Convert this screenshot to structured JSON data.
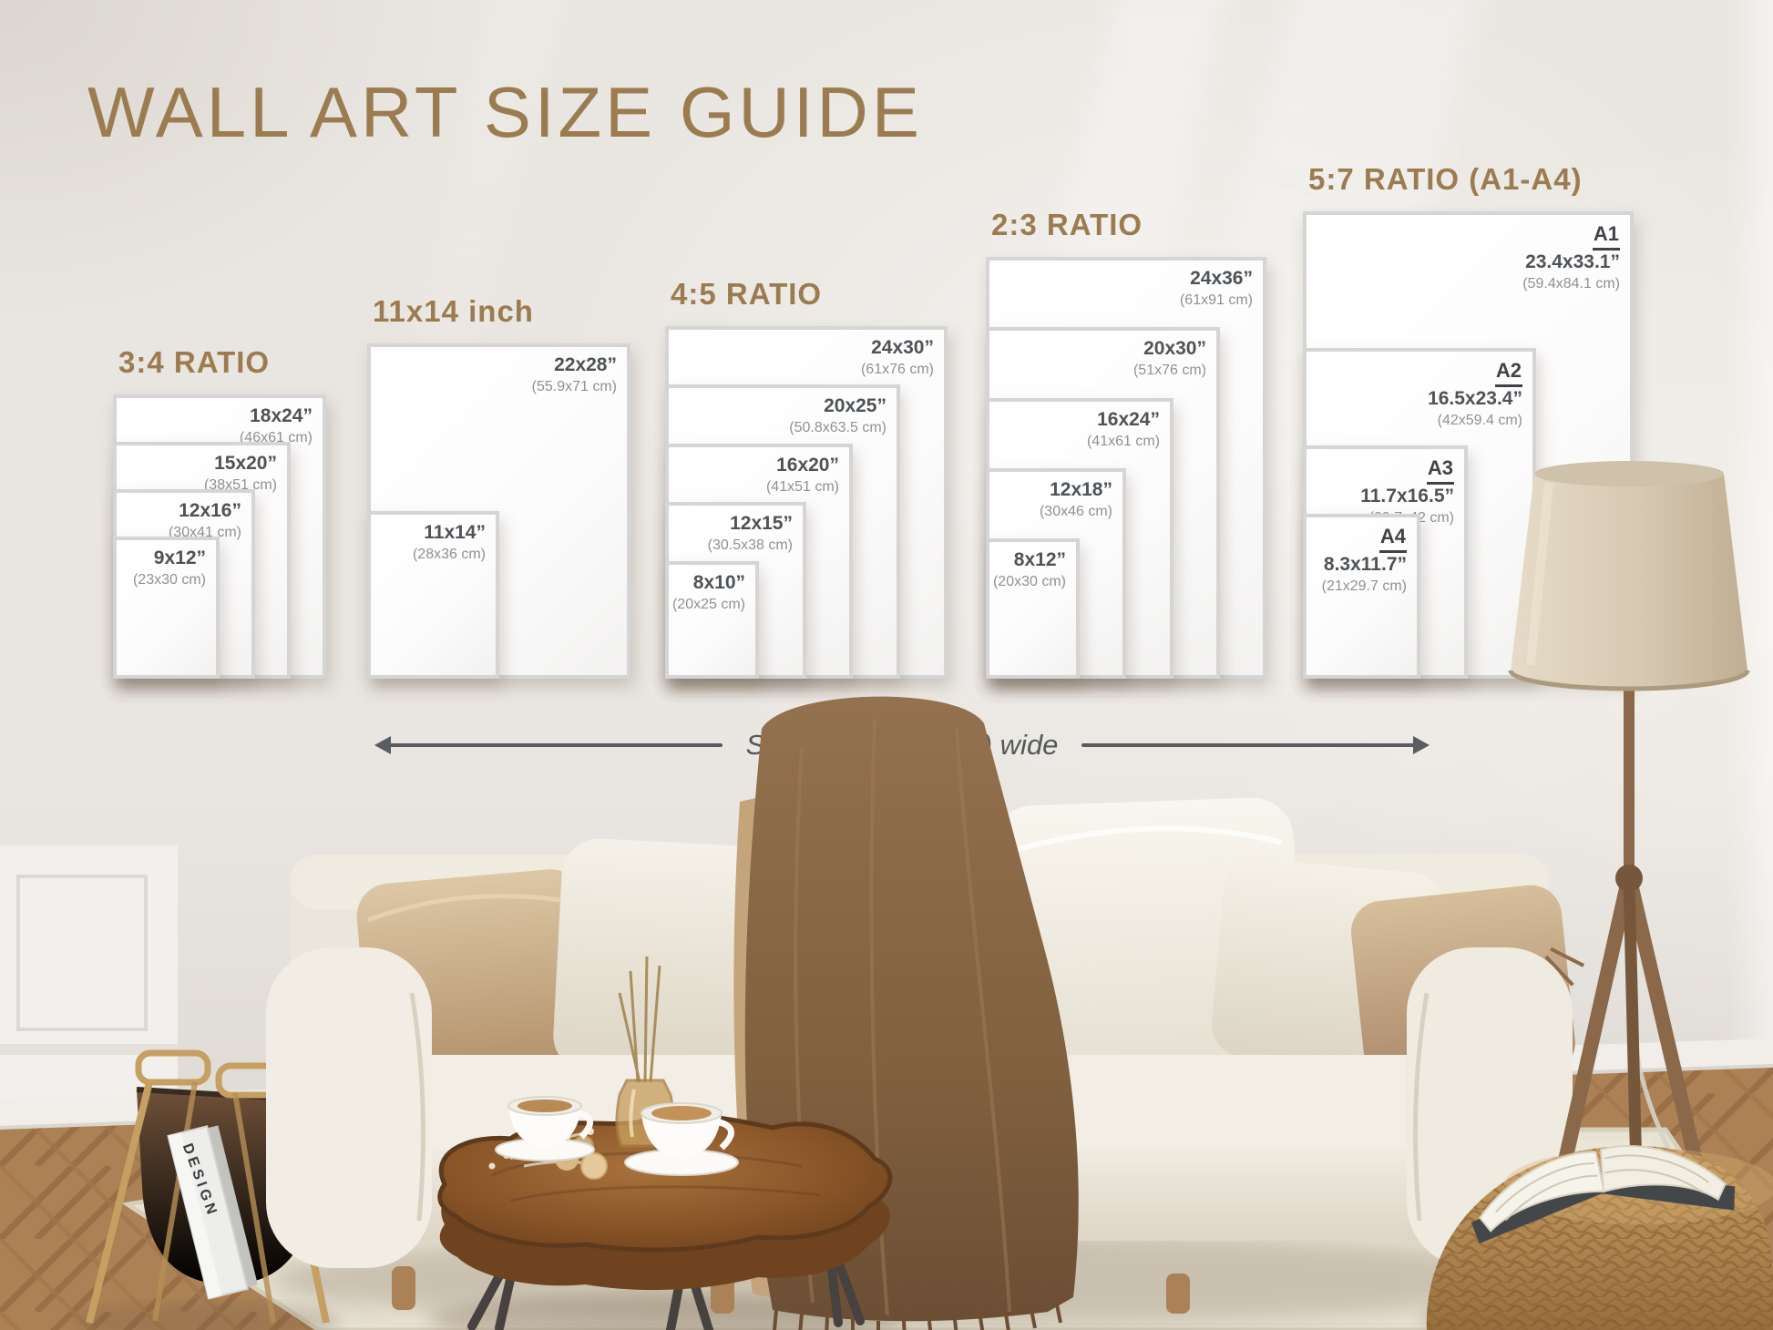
{
  "title": "WALL ART SIZE GUIDE",
  "sofa_note": "Sofa is 90” (228cm) wide",
  "magazine_label": "DESIGN",
  "colors": {
    "accent": "#9b7c50",
    "frame_border": "#d5d5d5",
    "label_dark": "#4e5357",
    "label_light": "#8d9195"
  },
  "groups": [
    {
      "id": "ratio-3-4",
      "header": "3:4 RATIO",
      "frames": [
        {
          "inches": "18x24”",
          "cm": "(46x61 cm)",
          "w_in": 18,
          "h_in": 24
        },
        {
          "inches": "15x20”",
          "cm": "(38x51 cm)",
          "w_in": 15,
          "h_in": 20
        },
        {
          "inches": "12x16”",
          "cm": "(30x41 cm)",
          "w_in": 12,
          "h_in": 16
        },
        {
          "inches": "9x12”",
          "cm": "(23x30 cm)",
          "w_in": 9,
          "h_in": 12
        }
      ]
    },
    {
      "id": "inch-11x14",
      "header": "11x14 inch",
      "frames": [
        {
          "inches": "22x28”",
          "cm": "(55.9x71 cm)",
          "w_in": 22,
          "h_in": 28
        },
        {
          "inches": "11x14”",
          "cm": "(28x36 cm)",
          "w_in": 11,
          "h_in": 14
        }
      ]
    },
    {
      "id": "ratio-4-5",
      "header": "4:5 RATIO",
      "frames": [
        {
          "inches": "24x30”",
          "cm": "(61x76 cm)",
          "w_in": 24,
          "h_in": 30
        },
        {
          "inches": "20x25”",
          "cm": "(50.8x63.5 cm)",
          "w_in": 20,
          "h_in": 25
        },
        {
          "inches": "16x20”",
          "cm": "(41x51 cm)",
          "w_in": 16,
          "h_in": 20
        },
        {
          "inches": "12x15”",
          "cm": "(30.5x38 cm)",
          "w_in": 12,
          "h_in": 15
        },
        {
          "inches": "8x10”",
          "cm": "(20x25 cm)",
          "w_in": 8,
          "h_in": 10
        }
      ]
    },
    {
      "id": "ratio-2-3",
      "header": "2:3 RATIO",
      "frames": [
        {
          "inches": "24x36”",
          "cm": "(61x91 cm)",
          "w_in": 24,
          "h_in": 36
        },
        {
          "inches": "20x30”",
          "cm": "(51x76 cm)",
          "w_in": 20,
          "h_in": 30
        },
        {
          "inches": "16x24”",
          "cm": "(41x61 cm)",
          "w_in": 16,
          "h_in": 24
        },
        {
          "inches": "12x18”",
          "cm": "(30x46 cm)",
          "w_in": 12,
          "h_in": 18
        },
        {
          "inches": "8x12”",
          "cm": "(20x30 cm)",
          "w_in": 8,
          "h_in": 12
        }
      ]
    },
    {
      "id": "ratio-5-7",
      "header": "5:7 RATIO (A1-A4)",
      "frames": [
        {
          "code": "A1",
          "inches": "23.4x33.1”",
          "cm": "(59.4x84.1 cm)",
          "w_in": 23.4,
          "h_in": 33.1
        },
        {
          "code": "A2",
          "inches": "16.5x23.4”",
          "cm": "(42x59.4 cm)",
          "w_in": 16.5,
          "h_in": 23.4
        },
        {
          "code": "A3",
          "inches": "11.7x16.5”",
          "cm": "(29.7x42 cm)",
          "w_in": 11.7,
          "h_in": 16.5
        },
        {
          "code": "A4",
          "inches": "8.3x11.7”",
          "cm": "(21x29.7 cm)",
          "w_in": 8.3,
          "h_in": 11.7
        }
      ]
    }
  ]
}
